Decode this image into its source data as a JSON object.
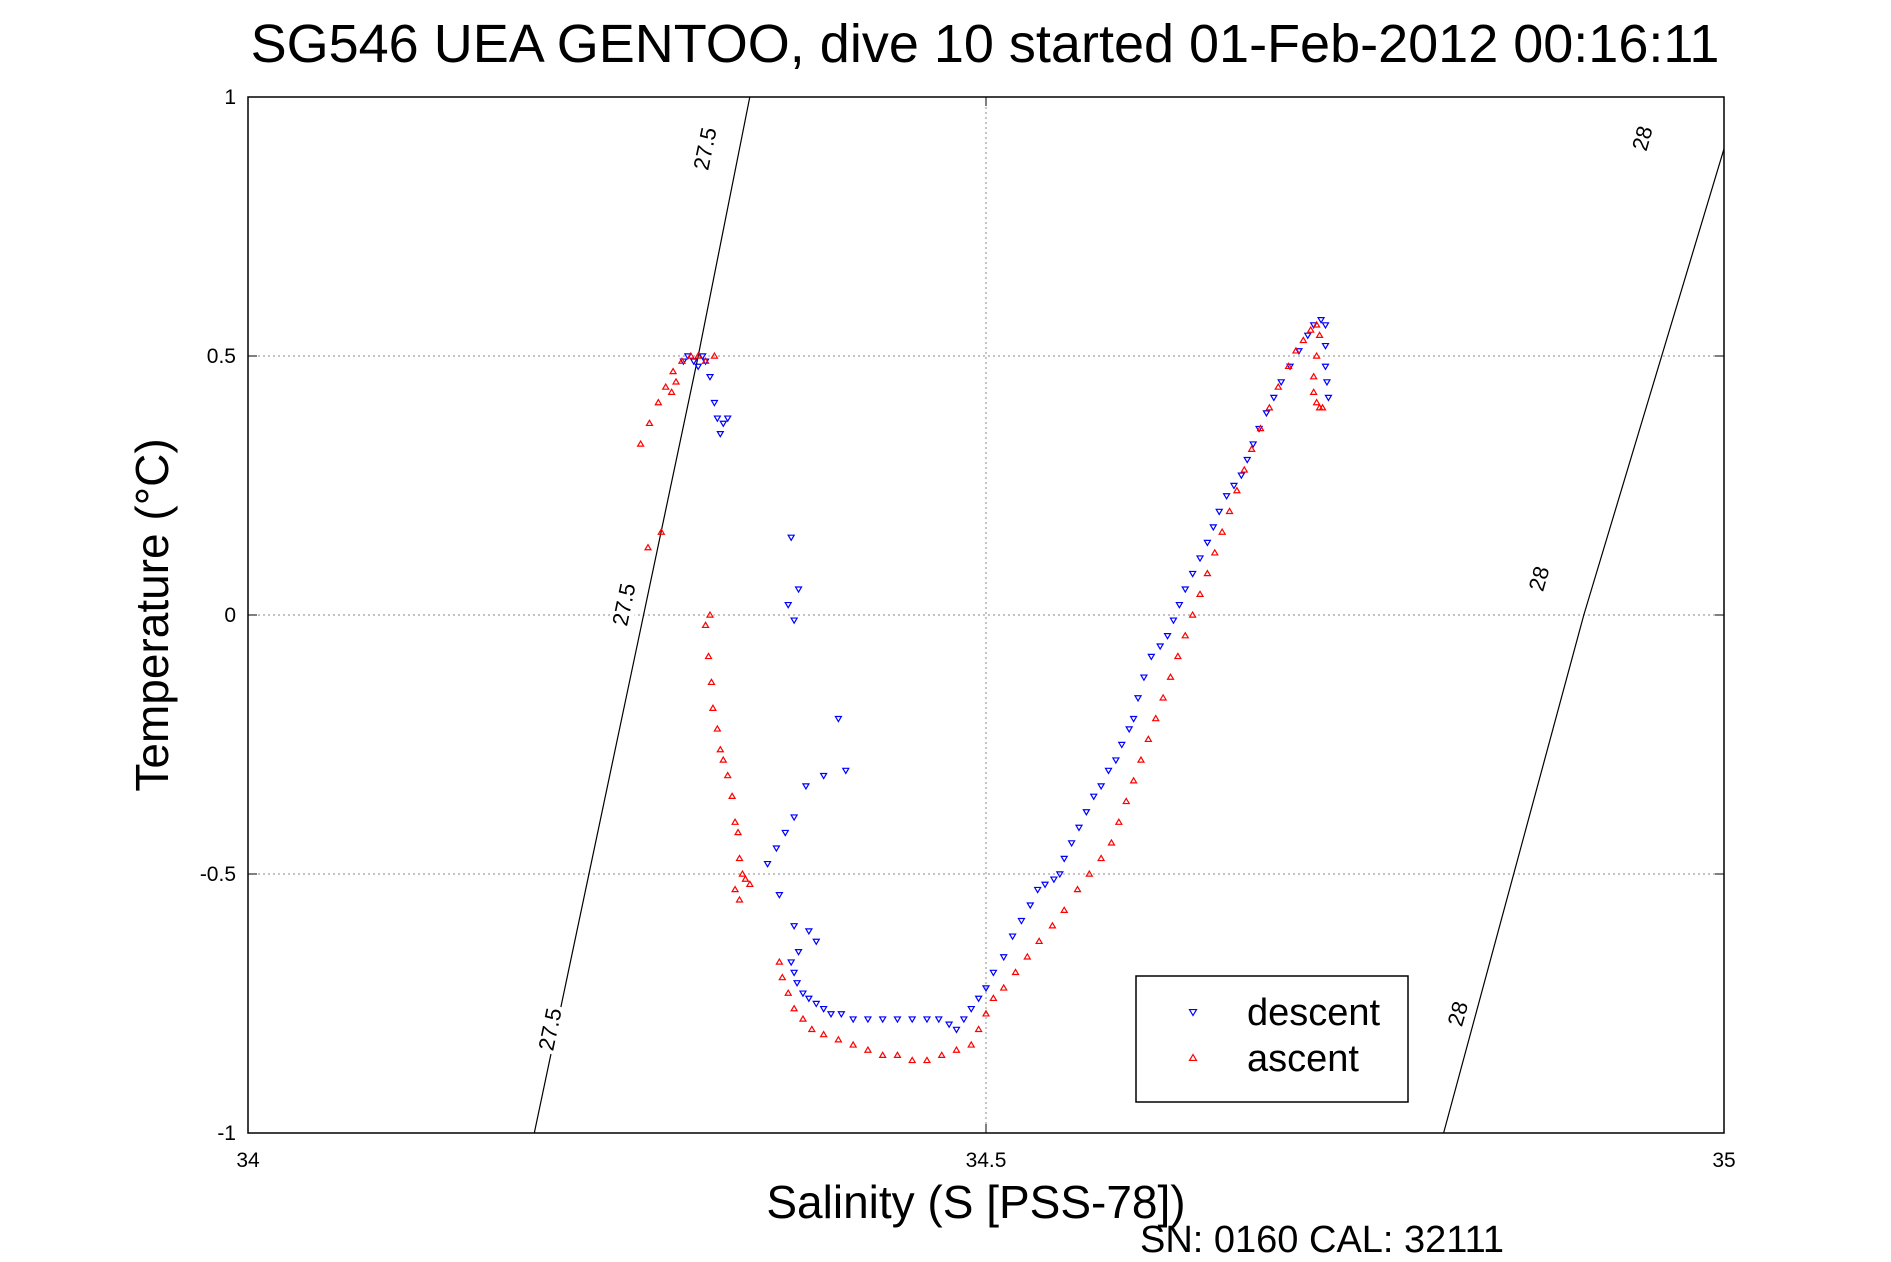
{
  "chart_data": {
    "type": "scatter",
    "title": "SG546 UEA GENTOO, dive 10 started 01-Feb-2012 00:16:11",
    "xlabel": "Salinity (S [PSS-78])",
    "ylabel": "Temperature (°C)",
    "xlim": [
      34,
      35
    ],
    "ylim": [
      -1,
      1
    ],
    "x_ticks": [
      "34",
      "34.5",
      "35"
    ],
    "y_ticks": [
      "1",
      "0.5",
      "0",
      "-0.5",
      "-1"
    ],
    "grid": "dotted",
    "legend_position": "bottom-right",
    "footer": "SN: 0160  CAL: 32111",
    "density_contours": [
      {
        "label": "27.5",
        "points": [
          [
            34.194,
            -1.0
          ],
          [
            34.305,
            0.5
          ],
          [
            34.34,
            1.0
          ]
        ],
        "label_positions": [
          [
            34.205,
            -0.8
          ],
          [
            34.255,
            0.02
          ],
          [
            34.31,
            0.9
          ]
        ]
      },
      {
        "label": "28",
        "points": [
          [
            34.81,
            -1.0
          ],
          [
            34.905,
            0.0
          ],
          [
            35.0,
            0.9
          ]
        ],
        "label_positions": [
          [
            34.82,
            -0.77
          ],
          [
            34.875,
            0.07
          ],
          [
            34.945,
            0.92
          ]
        ]
      }
    ],
    "series": [
      {
        "name": "descent",
        "color": "#0000ff",
        "marker": "triangle-down",
        "points": [
          [
            34.295,
            0.49
          ],
          [
            34.298,
            0.5
          ],
          [
            34.302,
            0.49
          ],
          [
            34.305,
            0.48
          ],
          [
            34.308,
            0.5
          ],
          [
            34.31,
            0.49
          ],
          [
            34.313,
            0.46
          ],
          [
            34.316,
            0.41
          ],
          [
            34.318,
            0.38
          ],
          [
            34.322,
            0.37
          ],
          [
            34.325,
            0.38
          ],
          [
            34.32,
            0.35
          ],
          [
            34.368,
            0.15
          ],
          [
            34.373,
            0.05
          ],
          [
            34.366,
            0.02
          ],
          [
            34.37,
            -0.01
          ],
          [
            34.4,
            -0.2
          ],
          [
            34.405,
            -0.3
          ],
          [
            34.39,
            -0.31
          ],
          [
            34.378,
            -0.33
          ],
          [
            34.37,
            -0.39
          ],
          [
            34.364,
            -0.42
          ],
          [
            34.358,
            -0.45
          ],
          [
            34.352,
            -0.48
          ],
          [
            34.36,
            -0.54
          ],
          [
            34.37,
            -0.6
          ],
          [
            34.38,
            -0.61
          ],
          [
            34.385,
            -0.63
          ],
          [
            34.373,
            -0.65
          ],
          [
            34.368,
            -0.67
          ],
          [
            34.37,
            -0.69
          ],
          [
            34.372,
            -0.71
          ],
          [
            34.376,
            -0.73
          ],
          [
            34.38,
            -0.74
          ],
          [
            34.385,
            -0.75
          ],
          [
            34.39,
            -0.76
          ],
          [
            34.395,
            -0.77
          ],
          [
            34.402,
            -0.77
          ],
          [
            34.41,
            -0.78
          ],
          [
            34.42,
            -0.78
          ],
          [
            34.43,
            -0.78
          ],
          [
            34.44,
            -0.78
          ],
          [
            34.45,
            -0.78
          ],
          [
            34.46,
            -0.78
          ],
          [
            34.468,
            -0.78
          ],
          [
            34.475,
            -0.79
          ],
          [
            34.48,
            -0.8
          ],
          [
            34.485,
            -0.78
          ],
          [
            34.49,
            -0.76
          ],
          [
            34.495,
            -0.74
          ],
          [
            34.5,
            -0.72
          ],
          [
            34.505,
            -0.69
          ],
          [
            34.512,
            -0.66
          ],
          [
            34.518,
            -0.62
          ],
          [
            34.524,
            -0.59
          ],
          [
            34.53,
            -0.56
          ],
          [
            34.535,
            -0.53
          ],
          [
            34.54,
            -0.52
          ],
          [
            34.546,
            -0.51
          ],
          [
            34.55,
            -0.5
          ],
          [
            34.553,
            -0.47
          ],
          [
            34.558,
            -0.44
          ],
          [
            34.563,
            -0.41
          ],
          [
            34.568,
            -0.38
          ],
          [
            34.573,
            -0.35
          ],
          [
            34.578,
            -0.33
          ],
          [
            34.583,
            -0.3
          ],
          [
            34.588,
            -0.28
          ],
          [
            34.592,
            -0.25
          ],
          [
            34.597,
            -0.22
          ],
          [
            34.6,
            -0.2
          ],
          [
            34.603,
            -0.16
          ],
          [
            34.607,
            -0.12
          ],
          [
            34.612,
            -0.08
          ],
          [
            34.618,
            -0.06
          ],
          [
            34.623,
            -0.04
          ],
          [
            34.627,
            -0.01
          ],
          [
            34.631,
            0.02
          ],
          [
            34.635,
            0.05
          ],
          [
            34.64,
            0.08
          ],
          [
            34.645,
            0.11
          ],
          [
            34.65,
            0.14
          ],
          [
            34.654,
            0.17
          ],
          [
            34.658,
            0.2
          ],
          [
            34.663,
            0.23
          ],
          [
            34.668,
            0.25
          ],
          [
            34.673,
            0.27
          ],
          [
            34.677,
            0.3
          ],
          [
            34.681,
            0.33
          ],
          [
            34.685,
            0.36
          ],
          [
            34.69,
            0.39
          ],
          [
            34.695,
            0.42
          ],
          [
            34.7,
            0.45
          ],
          [
            34.706,
            0.48
          ],
          [
            34.712,
            0.51
          ],
          [
            34.718,
            0.54
          ],
          [
            34.722,
            0.56
          ],
          [
            34.727,
            0.57
          ],
          [
            34.73,
            0.56
          ],
          [
            34.73,
            0.52
          ],
          [
            34.73,
            0.48
          ],
          [
            34.731,
            0.45
          ],
          [
            34.732,
            0.42
          ]
        ]
      },
      {
        "name": "ascent",
        "color": "#ff0000",
        "marker": "triangle-up",
        "points": [
          [
            34.266,
            0.33
          ],
          [
            34.272,
            0.37
          ],
          [
            34.278,
            0.41
          ],
          [
            34.283,
            0.44
          ],
          [
            34.288,
            0.47
          ],
          [
            34.294,
            0.49
          ],
          [
            34.3,
            0.5
          ],
          [
            34.305,
            0.5
          ],
          [
            34.31,
            0.49
          ],
          [
            34.316,
            0.5
          ],
          [
            34.29,
            0.45
          ],
          [
            34.287,
            0.43
          ],
          [
            34.28,
            0.16
          ],
          [
            34.271,
            0.13
          ],
          [
            34.313,
            0.0
          ],
          [
            34.31,
            -0.02
          ],
          [
            34.312,
            -0.08
          ],
          [
            34.314,
            -0.13
          ],
          [
            34.315,
            -0.18
          ],
          [
            34.318,
            -0.22
          ],
          [
            34.32,
            -0.26
          ],
          [
            34.322,
            -0.28
          ],
          [
            34.325,
            -0.31
          ],
          [
            34.328,
            -0.35
          ],
          [
            34.33,
            -0.4
          ],
          [
            34.332,
            -0.42
          ],
          [
            34.333,
            -0.47
          ],
          [
            34.335,
            -0.5
          ],
          [
            34.337,
            -0.51
          ],
          [
            34.33,
            -0.53
          ],
          [
            34.333,
            -0.55
          ],
          [
            34.34,
            -0.52
          ],
          [
            34.36,
            -0.67
          ],
          [
            34.362,
            -0.7
          ],
          [
            34.366,
            -0.73
          ],
          [
            34.37,
            -0.76
          ],
          [
            34.376,
            -0.78
          ],
          [
            34.382,
            -0.8
          ],
          [
            34.39,
            -0.81
          ],
          [
            34.4,
            -0.82
          ],
          [
            34.41,
            -0.83
          ],
          [
            34.42,
            -0.84
          ],
          [
            34.43,
            -0.85
          ],
          [
            34.44,
            -0.85
          ],
          [
            34.45,
            -0.86
          ],
          [
            34.46,
            -0.86
          ],
          [
            34.47,
            -0.85
          ],
          [
            34.48,
            -0.84
          ],
          [
            34.49,
            -0.83
          ],
          [
            34.495,
            -0.8
          ],
          [
            34.5,
            -0.77
          ],
          [
            34.505,
            -0.74
          ],
          [
            34.512,
            -0.72
          ],
          [
            34.52,
            -0.69
          ],
          [
            34.528,
            -0.66
          ],
          [
            34.536,
            -0.63
          ],
          [
            34.545,
            -0.6
          ],
          [
            34.553,
            -0.57
          ],
          [
            34.562,
            -0.53
          ],
          [
            34.57,
            -0.5
          ],
          [
            34.578,
            -0.47
          ],
          [
            34.585,
            -0.44
          ],
          [
            34.59,
            -0.4
          ],
          [
            34.595,
            -0.36
          ],
          [
            34.6,
            -0.32
          ],
          [
            34.605,
            -0.28
          ],
          [
            34.61,
            -0.24
          ],
          [
            34.615,
            -0.2
          ],
          [
            34.62,
            -0.16
          ],
          [
            34.625,
            -0.12
          ],
          [
            34.63,
            -0.08
          ],
          [
            34.635,
            -0.04
          ],
          [
            34.64,
            0.0
          ],
          [
            34.645,
            0.04
          ],
          [
            34.65,
            0.08
          ],
          [
            34.655,
            0.12
          ],
          [
            34.66,
            0.16
          ],
          [
            34.665,
            0.2
          ],
          [
            34.67,
            0.24
          ],
          [
            34.675,
            0.28
          ],
          [
            34.68,
            0.32
          ],
          [
            34.686,
            0.36
          ],
          [
            34.692,
            0.4
          ],
          [
            34.698,
            0.44
          ],
          [
            34.705,
            0.48
          ],
          [
            34.71,
            0.51
          ],
          [
            34.715,
            0.53
          ],
          [
            34.72,
            0.55
          ],
          [
            34.724,
            0.56
          ],
          [
            34.726,
            0.54
          ],
          [
            34.724,
            0.5
          ],
          [
            34.722,
            0.46
          ],
          [
            34.722,
            0.43
          ],
          [
            34.724,
            0.41
          ],
          [
            34.726,
            0.4
          ],
          [
            34.728,
            0.4
          ]
        ]
      }
    ]
  }
}
